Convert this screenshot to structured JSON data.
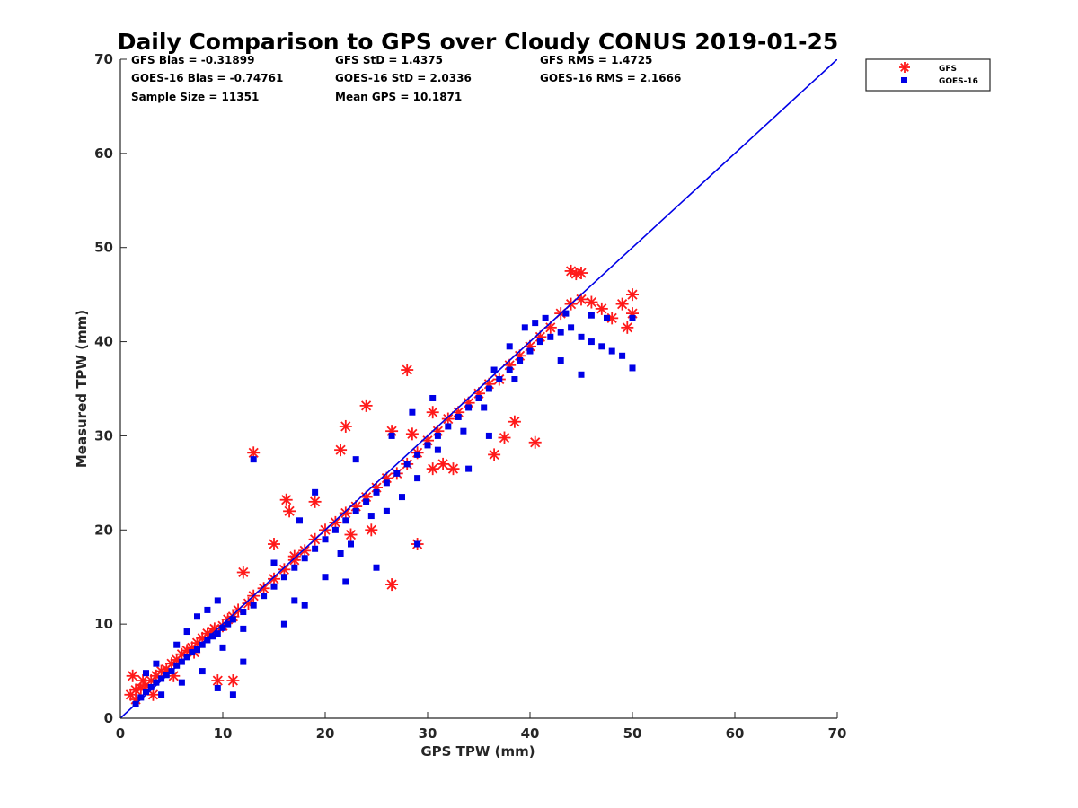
{
  "chart_data": {
    "type": "scatter",
    "title": "Daily Comparison to GPS over Cloudy CONUS 2019-01-25",
    "xlabel": "GPS TPW (mm)",
    "ylabel": "Measured TPW (mm)",
    "xlim": [
      0,
      70
    ],
    "ylim": [
      0,
      70
    ],
    "xticks": [
      "0",
      "10",
      "20",
      "30",
      "40",
      "50",
      "60",
      "70"
    ],
    "yticks": [
      "0",
      "10",
      "20",
      "30",
      "40",
      "50",
      "60",
      "70"
    ],
    "grid": false,
    "legend_position": "outside-top-right",
    "stats": [
      "GFS Bias = -0.31899",
      "GFS StD = 1.4375",
      "GFS RMS = 1.4725",
      "GOES-16 Bias = -0.74761",
      "GOES-16 StD = 2.0336",
      "GOES-16 RMS = 2.1666",
      "Sample Size = 11351",
      "Mean GPS = 10.1871"
    ],
    "reference_line": {
      "x": [
        0,
        70
      ],
      "y": [
        0,
        70
      ],
      "color": "#0000e6"
    },
    "series": [
      {
        "name": "GFS",
        "marker": "asterisk",
        "color": "#ff1a1a",
        "x": [
          1.0,
          1.5,
          2.0,
          2.5,
          3.0,
          3.5,
          4.0,
          4.5,
          5.0,
          5.5,
          6.0,
          6.5,
          7.0,
          7.5,
          8.0,
          8.5,
          9.0,
          10.0,
          11.0,
          1.2,
          2.2,
          3.2,
          5.2,
          7.2,
          9.2,
          1.5,
          10.5,
          11.5,
          12.5,
          13.0,
          14.0,
          15.0,
          16.0,
          17.0,
          18.0,
          19.0,
          20.0,
          21.0,
          22.0,
          23.0,
          24.0,
          25.0,
          26.0,
          27.0,
          28.0,
          29.0,
          30.0,
          31.0,
          32.0,
          33.0,
          34.0,
          35.0,
          36.0,
          37.0,
          38.0,
          39.0,
          40.0,
          41.0,
          42.0,
          43.0,
          44.0,
          45.0,
          46.0,
          47.0,
          48.0,
          49.0,
          50.0,
          13.0,
          9.5,
          11.0,
          16.2,
          16.5,
          19.0,
          21.5,
          22.0,
          24.0,
          26.5,
          28.0,
          28.5,
          29.0,
          30.5,
          31.5,
          32.5,
          36.5,
          37.5,
          38.5,
          40.5,
          44.0,
          44.5,
          45.0,
          50.0,
          49.5,
          26.5,
          22.5,
          24.5,
          17.0,
          12.0,
          15.0,
          30.5
        ],
        "y": [
          2.5,
          3.0,
          3.2,
          3.5,
          4.0,
          4.5,
          5.0,
          5.2,
          5.8,
          6.2,
          6.8,
          7.2,
          7.5,
          8.0,
          8.5,
          9.0,
          9.2,
          9.8,
          10.8,
          4.5,
          4.0,
          2.5,
          4.5,
          7.0,
          9.5,
          2.0,
          10.5,
          11.5,
          12.2,
          13.0,
          13.8,
          14.8,
          15.8,
          16.8,
          17.8,
          19.0,
          20.0,
          20.8,
          21.8,
          22.5,
          23.5,
          24.5,
          25.5,
          26.0,
          27.0,
          28.2,
          29.5,
          30.5,
          31.8,
          32.5,
          33.5,
          34.5,
          35.5,
          36.0,
          37.5,
          38.5,
          39.5,
          40.5,
          41.5,
          43.0,
          44.0,
          44.5,
          44.2,
          43.5,
          42.5,
          44.0,
          43.0,
          28.2,
          4.0,
          4.0,
          23.2,
          22.0,
          23.0,
          28.5,
          31.0,
          33.2,
          14.2,
          37.0,
          30.2,
          18.5,
          26.5,
          27.0,
          26.5,
          28.0,
          29.8,
          31.5,
          29.3,
          47.5,
          47.2,
          47.3,
          45.0,
          41.5,
          30.5,
          19.5,
          20.0,
          17.2,
          15.5,
          18.5,
          32.5
        ]
      },
      {
        "name": "GOES-16",
        "marker": "square",
        "color": "#0000e6",
        "x": [
          1.5,
          2.0,
          2.5,
          3.0,
          3.5,
          4.0,
          4.5,
          5.0,
          5.5,
          6.0,
          6.5,
          7.0,
          7.5,
          8.0,
          8.5,
          9.0,
          9.5,
          10.0,
          10.5,
          11.0,
          12.0,
          2.5,
          3.5,
          5.5,
          6.5,
          7.5,
          8.5,
          9.5,
          4.0,
          6.0,
          8.0,
          10.0,
          12.0,
          13.0,
          14.0,
          15.0,
          16.0,
          17.0,
          18.0,
          19.0,
          20.0,
          21.0,
          22.0,
          23.0,
          24.0,
          25.0,
          26.0,
          27.0,
          28.0,
          29.0,
          30.0,
          31.0,
          32.0,
          33.0,
          34.0,
          35.0,
          36.0,
          37.0,
          38.0,
          39.0,
          40.0,
          41.0,
          42.0,
          43.0,
          44.0,
          45.0,
          46.0,
          47.0,
          48.0,
          49.0,
          50.0,
          13.0,
          16.0,
          18.0,
          20.0,
          21.5,
          22.5,
          24.5,
          26.0,
          27.5,
          29.0,
          31.0,
          33.5,
          35.5,
          38.5,
          40.5,
          41.5,
          43.5,
          46.0,
          47.5,
          50.0,
          15.0,
          17.5,
          19.0,
          23.0,
          26.5,
          28.5,
          30.5,
          36.5,
          38.0,
          39.5,
          9.5,
          11.0,
          12.0,
          17.0,
          22.0,
          25.0,
          43.0,
          45.0,
          36.0,
          29.0,
          34.0
        ],
        "y": [
          1.5,
          2.2,
          2.8,
          3.3,
          3.8,
          4.2,
          4.6,
          5.0,
          5.6,
          6.0,
          6.5,
          7.0,
          7.3,
          7.8,
          8.3,
          8.7,
          9.0,
          9.6,
          10.0,
          10.5,
          11.3,
          4.8,
          5.8,
          7.8,
          9.2,
          10.8,
          11.5,
          12.5,
          2.5,
          3.8,
          5.0,
          7.5,
          9.5,
          12.0,
          13.0,
          14.0,
          15.0,
          16.0,
          17.0,
          18.0,
          19.0,
          20.0,
          21.0,
          22.0,
          23.0,
          24.0,
          25.0,
          26.0,
          27.0,
          28.0,
          29.0,
          30.0,
          31.0,
          32.0,
          33.0,
          34.0,
          35.0,
          36.0,
          37.0,
          38.0,
          39.0,
          40.0,
          40.5,
          41.0,
          41.5,
          40.5,
          40.0,
          39.5,
          39.0,
          38.5,
          37.2,
          27.5,
          10.0,
          12.0,
          15.0,
          17.5,
          18.5,
          21.5,
          22.0,
          23.5,
          25.5,
          28.5,
          30.5,
          33.0,
          36.0,
          42.0,
          42.5,
          43.0,
          42.8,
          42.5,
          42.5,
          16.5,
          21.0,
          24.0,
          27.5,
          30.0,
          32.5,
          34.0,
          37.0,
          39.5,
          41.5,
          3.2,
          2.5,
          6.0,
          12.5,
          14.5,
          16.0,
          38.0,
          36.5,
          30.0,
          18.5,
          26.5
        ]
      }
    ]
  }
}
